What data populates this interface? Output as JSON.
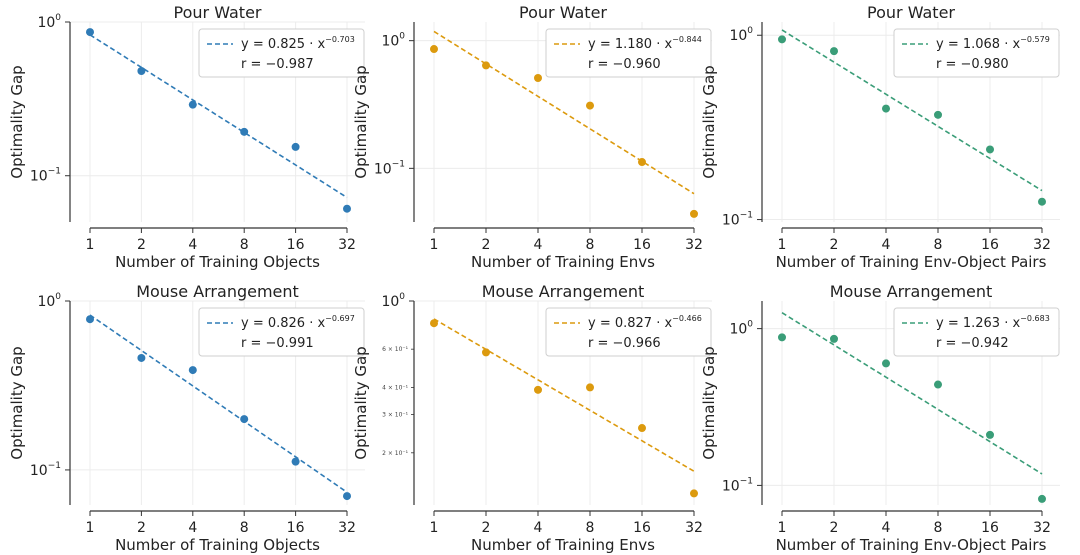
{
  "colors": {
    "blue": "#2f7bb6",
    "orange": "#dc9a0e",
    "green": "#3a9d78"
  },
  "chart_data": [
    {
      "type": "scatter",
      "title": "Pour Water",
      "xlabel": "Number of Training Objects",
      "ylabel": "Optimality Gap",
      "x": [
        1,
        2,
        4,
        8,
        16,
        32
      ],
      "y": [
        0.86,
        0.48,
        0.29,
        0.193,
        0.154,
        0.061
      ],
      "xscale": "log2",
      "yscale": "log",
      "ylim": [
        0.05,
        1.0
      ],
      "yticks": [
        {
          "value": 1.0,
          "base": "10",
          "exp": "0"
        },
        {
          "value": 0.1,
          "base": "10",
          "exp": "−1"
        }
      ],
      "minor_yticks": [],
      "fit": {
        "a": 0.825,
        "b": -0.703
      },
      "color": "blue",
      "legend": {
        "placement": "top-right",
        "eq_prefix": "y = 0.825 · x",
        "eq_exp": "−0.703",
        "r_text": "r = −0.987"
      }
    },
    {
      "type": "scatter",
      "title": "Pour Water",
      "xlabel": "Number of Training Envs",
      "ylabel": "Optimality Gap",
      "x": [
        1,
        2,
        4,
        8,
        16,
        32
      ],
      "y": [
        0.86,
        0.64,
        0.51,
        0.31,
        0.112,
        0.044
      ],
      "xscale": "log2",
      "yscale": "log",
      "ylim": [
        0.038,
        1.4
      ],
      "yticks": [
        {
          "value": 1.0,
          "base": "10",
          "exp": "0"
        },
        {
          "value": 0.1,
          "base": "10",
          "exp": "−1"
        }
      ],
      "minor_yticks": [],
      "fit": {
        "a": 1.18,
        "b": -0.844
      },
      "color": "orange",
      "legend": {
        "placement": "top-right",
        "eq_prefix": "y = 1.180 · x",
        "eq_exp": "−0.844",
        "r_text": "r = −0.960"
      }
    },
    {
      "type": "scatter",
      "title": "Pour Water",
      "xlabel": "Number of Training Env-Object Pairs",
      "ylabel": "Optimality Gap",
      "x": [
        1,
        2,
        4,
        8,
        16,
        32
      ],
      "y": [
        0.95,
        0.82,
        0.4,
        0.37,
        0.24,
        0.125
      ],
      "xscale": "log2",
      "yscale": "log",
      "ylim": [
        0.097,
        1.18
      ],
      "yticks": [
        {
          "value": 1.0,
          "base": "10",
          "exp": "0"
        },
        {
          "value": 0.1,
          "base": "10",
          "exp": "−1"
        }
      ],
      "minor_yticks": [],
      "fit": {
        "a": 1.068,
        "b": -0.579
      },
      "color": "green",
      "legend": {
        "placement": "top-right",
        "eq_prefix": "y = 1.068 · x",
        "eq_exp": "−0.579",
        "r_text": "r = −0.980"
      }
    },
    {
      "type": "scatter",
      "title": "Mouse Arrangement",
      "xlabel": "Number of Training Objects",
      "ylabel": "Optimality Gap",
      "x": [
        1,
        2,
        4,
        8,
        16,
        32
      ],
      "y": [
        0.78,
        0.46,
        0.39,
        0.2,
        0.112,
        0.07
      ],
      "xscale": "log2",
      "yscale": "log",
      "ylim": [
        0.062,
        1.0
      ],
      "yticks": [
        {
          "value": 1.0,
          "base": "10",
          "exp": "0"
        },
        {
          "value": 0.1,
          "base": "10",
          "exp": "−1"
        }
      ],
      "minor_yticks": [],
      "fit": {
        "a": 0.826,
        "b": -0.697
      },
      "color": "blue",
      "legend": {
        "placement": "top-right",
        "eq_prefix": "y = 0.826 · x",
        "eq_exp": "−0.697",
        "r_text": "r = −0.991"
      }
    },
    {
      "type": "scatter",
      "title": "Mouse Arrangement",
      "xlabel": "Number of Training Envs",
      "ylabel": "Optimality Gap",
      "x": [
        1,
        2,
        4,
        8,
        16,
        32
      ],
      "y": [
        0.79,
        0.58,
        0.39,
        0.4,
        0.26,
        0.13
      ],
      "xscale": "log2",
      "yscale": "log",
      "ylim": [
        0.115,
        1.0
      ],
      "yticks": [
        {
          "value": 1.0,
          "base": "10",
          "exp": "0"
        }
      ],
      "minor_yticks": [
        {
          "value": 0.6,
          "label": "6 × 10⁻¹"
        },
        {
          "value": 0.4,
          "label": "4 × 10⁻¹"
        },
        {
          "value": 0.3,
          "label": "3 × 10⁻¹"
        },
        {
          "value": 0.2,
          "label": "2 × 10⁻¹"
        }
      ],
      "fit": {
        "a": 0.827,
        "b": -0.466
      },
      "color": "orange",
      "legend": {
        "placement": "top-right",
        "eq_prefix": "y = 0.827 · x",
        "eq_exp": "−0.466",
        "r_text": "r = −0.966"
      }
    },
    {
      "type": "scatter",
      "title": "Mouse Arrangement",
      "xlabel": "Number of Training Env-Object Pairs",
      "ylabel": "Optimality Gap",
      "x": [
        1,
        2,
        4,
        8,
        16,
        32
      ],
      "y": [
        0.88,
        0.86,
        0.6,
        0.44,
        0.21,
        0.082
      ],
      "xscale": "log2",
      "yscale": "log",
      "ylim": [
        0.075,
        1.5
      ],
      "yticks": [
        {
          "value": 1.0,
          "base": "10",
          "exp": "0"
        },
        {
          "value": 0.1,
          "base": "10",
          "exp": "−1"
        }
      ],
      "minor_yticks": [],
      "fit": {
        "a": 1.263,
        "b": -0.683
      },
      "color": "green",
      "legend": {
        "placement": "top-right",
        "eq_prefix": "y = 1.263 · x",
        "eq_exp": "−0.683",
        "r_text": "r = −0.942"
      }
    }
  ]
}
